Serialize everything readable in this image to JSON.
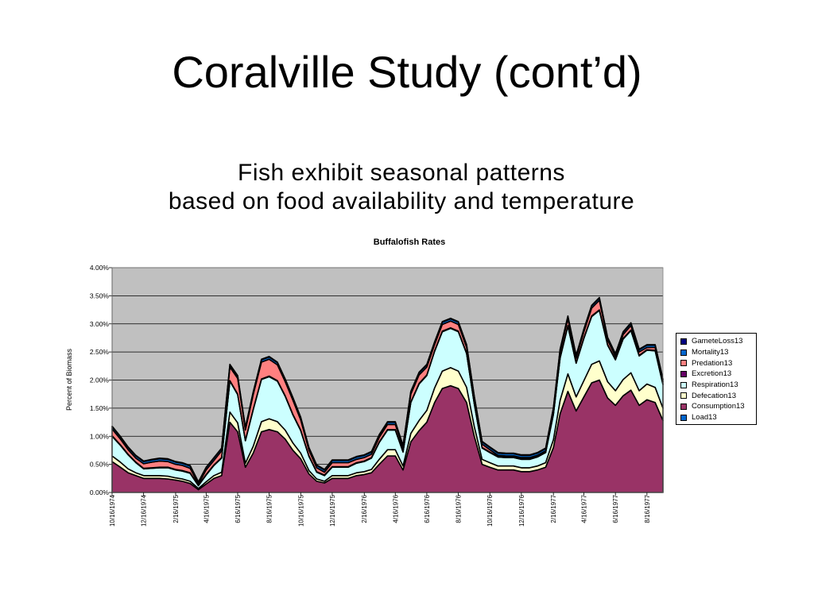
{
  "slide": {
    "title": "Coralville Study (cont’d)",
    "headline_line1": "Fish exhibit seasonal patterns",
    "headline_line2": "based  on food availability and temperature"
  },
  "chart_data": {
    "type": "area",
    "title": "Buffalofish Rates",
    "xlabel": "",
    "ylabel": "Percent of Biomass",
    "ylim": [
      0,
      0.04
    ],
    "y_ticks": [
      "0.00%",
      "0.50%",
      "1.00%",
      "1.50%",
      "2.00%",
      "2.50%",
      "3.00%",
      "3.50%",
      "4.00%"
    ],
    "x_ticks": [
      "10/16/1974",
      "12/16/1974",
      "2/16/1975",
      "4/16/1975",
      "6/16/1975",
      "8/16/1975",
      "10/16/1975",
      "12/16/1975",
      "2/16/1976",
      "4/16/1976",
      "6/16/1976",
      "8/16/1976",
      "10/16/1976",
      "12/16/1976",
      "2/16/1977",
      "4/16/1977",
      "6/16/1977",
      "8/16/1977"
    ],
    "x_tick_labels": [
      "10/16/1974",
      "12/16/1974",
      "2/16/1975",
      "4/16/1975",
      "6/16/1975",
      "8/16/1975",
      "10/16/1975",
      "12/16/1975",
      "2/16/1976",
      "4/16/1976",
      "6/16/1976",
      "8/16/1976",
      "10/16/1976",
      "12/16/1976",
      "2/16/1977",
      "4/16/1977",
      "6/16/1977",
      "8/16/1977"
    ],
    "stacked": true,
    "grid": true,
    "plot_background": "#C0C0C0",
    "legend_position": "right",
    "x": [
      "1974-10-16",
      "1974-11-01",
      "1974-11-16",
      "1974-12-01",
      "1974-12-16",
      "1975-01-01",
      "1975-01-16",
      "1975-02-01",
      "1975-02-16",
      "1975-03-01",
      "1975-03-16",
      "1975-04-01",
      "1975-04-16",
      "1975-05-01",
      "1975-05-16",
      "1975-06-01",
      "1975-06-16",
      "1975-07-01",
      "1975-07-16",
      "1975-08-01",
      "1975-08-16",
      "1975-09-01",
      "1975-09-16",
      "1975-10-01",
      "1975-10-16",
      "1975-11-01",
      "1975-11-16",
      "1975-12-01",
      "1975-12-16",
      "1976-01-01",
      "1976-01-16",
      "1976-02-01",
      "1976-02-16",
      "1976-03-01",
      "1976-03-16",
      "1976-04-01",
      "1976-04-16",
      "1976-05-01",
      "1976-05-16",
      "1976-06-01",
      "1976-06-16",
      "1976-07-01",
      "1976-07-16",
      "1976-08-01",
      "1976-08-16",
      "1976-09-01",
      "1976-09-16",
      "1976-10-01",
      "1976-10-16",
      "1976-11-01",
      "1976-11-16",
      "1976-12-01",
      "1976-12-16",
      "1977-01-01",
      "1977-01-16",
      "1977-02-01",
      "1977-02-16",
      "1977-03-01",
      "1977-03-16",
      "1977-04-01",
      "1977-04-16",
      "1977-05-01",
      "1977-05-16",
      "1977-06-01",
      "1977-06-16",
      "1977-07-01",
      "1977-07-16",
      "1977-08-01",
      "1977-08-16",
      "1977-09-01",
      "1977-09-16"
    ],
    "series": [
      {
        "name": "Consumption13",
        "color": "#993366",
        "values": [
          0.0055,
          0.0045,
          0.0035,
          0.003,
          0.0025,
          0.0025,
          0.0025,
          0.0024,
          0.0022,
          0.002,
          0.0016,
          0.0005,
          0.0015,
          0.0025,
          0.003,
          0.0125,
          0.0108,
          0.0045,
          0.007,
          0.0108,
          0.0112,
          0.0108,
          0.0095,
          0.0075,
          0.006,
          0.0033,
          0.002,
          0.0017,
          0.0025,
          0.0025,
          0.0025,
          0.003,
          0.0032,
          0.0035,
          0.005,
          0.0065,
          0.0065,
          0.004,
          0.009,
          0.011,
          0.0125,
          0.016,
          0.0185,
          0.019,
          0.0185,
          0.016,
          0.01,
          0.005,
          0.0045,
          0.004,
          0.004,
          0.004,
          0.0037,
          0.0037,
          0.004,
          0.0045,
          0.008,
          0.014,
          0.018,
          0.0145,
          0.017,
          0.0195,
          0.02,
          0.0168,
          0.0155,
          0.0172,
          0.0182,
          0.0155,
          0.0165,
          0.016,
          0.0128
        ]
      },
      {
        "name": "Defecation13",
        "color": "#FFFFCC",
        "values": [
          0.001,
          0.0009,
          0.0007,
          0.0005,
          0.0005,
          0.0005,
          0.0005,
          0.0005,
          0.0004,
          0.0004,
          0.0004,
          0.0002,
          0.0004,
          0.0005,
          0.0006,
          0.0018,
          0.0016,
          0.0007,
          0.0012,
          0.0018,
          0.0019,
          0.0018,
          0.0016,
          0.0013,
          0.001,
          0.0006,
          0.0004,
          0.0003,
          0.0005,
          0.0005,
          0.0005,
          0.0005,
          0.0005,
          0.0006,
          0.0009,
          0.0011,
          0.0011,
          0.0007,
          0.0015,
          0.0018,
          0.0021,
          0.0026,
          0.0031,
          0.0032,
          0.0031,
          0.0027,
          0.0017,
          0.0009,
          0.0008,
          0.0007,
          0.0007,
          0.0007,
          0.0007,
          0.0007,
          0.0007,
          0.0008,
          0.0014,
          0.0024,
          0.0031,
          0.0025,
          0.0029,
          0.0033,
          0.0034,
          0.0029,
          0.0026,
          0.0029,
          0.0031,
          0.0026,
          0.0028,
          0.0027,
          0.0022
        ]
      },
      {
        "name": "Respiration13",
        "color": "#CCFFFF",
        "values": [
          0.0035,
          0.003,
          0.0025,
          0.0018,
          0.0012,
          0.0013,
          0.0014,
          0.0015,
          0.0014,
          0.0014,
          0.0014,
          0.0005,
          0.0012,
          0.0018,
          0.0025,
          0.0055,
          0.005,
          0.004,
          0.0065,
          0.0075,
          0.0075,
          0.0072,
          0.006,
          0.005,
          0.004,
          0.0025,
          0.0012,
          0.001,
          0.0015,
          0.0015,
          0.0015,
          0.0017,
          0.0018,
          0.002,
          0.003,
          0.0035,
          0.0035,
          0.0025,
          0.0055,
          0.0065,
          0.0062,
          0.0065,
          0.007,
          0.007,
          0.007,
          0.006,
          0.004,
          0.002,
          0.0018,
          0.0016,
          0.0015,
          0.0015,
          0.0015,
          0.0015,
          0.0016,
          0.0018,
          0.0045,
          0.0075,
          0.0085,
          0.006,
          0.0075,
          0.0085,
          0.009,
          0.0065,
          0.0055,
          0.0072,
          0.0075,
          0.0062,
          0.006,
          0.0065,
          0.0042
        ]
      },
      {
        "name": "Excretion13",
        "color": "#660066",
        "values": [
          0.0001,
          0.0001,
          0.0001,
          0.0001,
          0.0001,
          0.0001,
          0.0001,
          0.0001,
          0.0001,
          0.0001,
          0.0001,
          0.0001,
          0.0001,
          0.0001,
          0.0001,
          0.0001,
          0.0001,
          0.0001,
          0.0001,
          0.0001,
          0.0001,
          0.0001,
          0.0001,
          0.0001,
          0.0001,
          0.0001,
          0.0001,
          0.0001,
          0.0001,
          0.0001,
          0.0001,
          0.0001,
          0.0001,
          0.0001,
          0.0001,
          0.0001,
          0.0001,
          0.0001,
          0.0001,
          0.0001,
          0.0001,
          0.0001,
          0.0001,
          0.0001,
          0.0001,
          0.0001,
          0.0001,
          0.0001,
          0.0001,
          0.0001,
          0.0001,
          0.0001,
          0.0001,
          0.0001,
          0.0001,
          0.0001,
          0.0001,
          0.0001,
          0.0001,
          0.0001,
          0.0001,
          0.0001,
          0.0001,
          0.0001,
          0.0001,
          0.0001,
          0.0001,
          0.0001,
          0.0001,
          0.0001,
          0.0001
        ]
      },
      {
        "name": "Predation13",
        "color": "#FF8080",
        "values": [
          0.0012,
          0.001,
          0.0008,
          0.0007,
          0.0008,
          0.001,
          0.0011,
          0.001,
          0.0009,
          0.0009,
          0.0008,
          0.0002,
          0.0008,
          0.0008,
          0.0012,
          0.0024,
          0.0028,
          0.0018,
          0.0026,
          0.003,
          0.003,
          0.0028,
          0.0025,
          0.0025,
          0.0018,
          0.001,
          0.0007,
          0.0005,
          0.0007,
          0.0007,
          0.0007,
          0.0006,
          0.0006,
          0.0006,
          0.0008,
          0.0009,
          0.0009,
          0.0006,
          0.0014,
          0.0015,
          0.0014,
          0.0011,
          0.0012,
          0.0012,
          0.0012,
          0.001,
          0.0008,
          0.0006,
          0.0004,
          0.0002,
          0.0002,
          0.0002,
          0.0002,
          0.0002,
          0.0002,
          0.0002,
          0.0006,
          0.001,
          0.0012,
          0.0008,
          0.0011,
          0.0014,
          0.0017,
          0.0008,
          0.0005,
          0.0007,
          0.0008,
          0.0006,
          0.0004,
          0.0005,
          0.0004
        ]
      },
      {
        "name": "Mortality13",
        "color": "#0066CC",
        "values": [
          0.0004,
          0.0004,
          0.0004,
          0.0004,
          0.0004,
          0.0004,
          0.0004,
          0.0004,
          0.0004,
          0.0004,
          0.0004,
          0.0003,
          0.0004,
          0.0004,
          0.0004,
          0.0004,
          0.0004,
          0.0004,
          0.0004,
          0.0004,
          0.0004,
          0.0004,
          0.0004,
          0.0004,
          0.0004,
          0.0004,
          0.0004,
          0.0004,
          0.0004,
          0.0004,
          0.0004,
          0.0004,
          0.0004,
          0.0004,
          0.0004,
          0.0004,
          0.0004,
          0.0004,
          0.0004,
          0.0004,
          0.0004,
          0.0004,
          0.0004,
          0.0004,
          0.0004,
          0.0004,
          0.0004,
          0.0004,
          0.0004,
          0.0004,
          0.0004,
          0.0004,
          0.0004,
          0.0004,
          0.0004,
          0.0004,
          0.0004,
          0.0004,
          0.0004,
          0.0004,
          0.0004,
          0.0004,
          0.0004,
          0.0004,
          0.0004,
          0.0004,
          0.0004,
          0.0004,
          0.0004,
          0.0004,
          0.0004
        ]
      },
      {
        "name": "GameteLoss13",
        "color": "#000080",
        "values": [
          0.0001,
          0.0001,
          0.0001,
          0.0001,
          0.0001,
          0.0001,
          0.0001,
          0.0001,
          0.0001,
          0.0001,
          0.0001,
          0.0001,
          0.0001,
          0.0001,
          0.0001,
          0.0001,
          0.0001,
          0.0001,
          0.0001,
          0.0001,
          0.0001,
          0.0001,
          0.0001,
          0.0001,
          0.0001,
          0.0001,
          0.0001,
          0.0001,
          0.0001,
          0.0001,
          0.0001,
          0.0001,
          0.0001,
          0.0001,
          0.0001,
          0.0001,
          0.0001,
          0.0001,
          0.0001,
          0.0001,
          0.0001,
          0.0001,
          0.0001,
          0.0001,
          0.0001,
          0.0001,
          0.0001,
          0.0001,
          0.0001,
          0.0001,
          0.0001,
          0.0001,
          0.0001,
          0.0001,
          0.0001,
          0.0001,
          0.0001,
          0.0001,
          0.0001,
          0.0001,
          0.0001,
          0.0001,
          0.0001,
          0.0001,
          0.0001,
          0.0001,
          0.0001,
          0.0001,
          0.0001,
          0.0001,
          0.0001
        ]
      }
    ],
    "legend": [
      {
        "label": "GameteLoss13",
        "color": "#000080"
      },
      {
        "label": "Mortality13",
        "color": "#0066CC"
      },
      {
        "label": "Predation13",
        "color": "#FF8080"
      },
      {
        "label": "Excretion13",
        "color": "#660066"
      },
      {
        "label": "Respiration13",
        "color": "#CCFFFF"
      },
      {
        "label": "Defecation13",
        "color": "#FFFFCC"
      },
      {
        "label": "Consumption13",
        "color": "#993366"
      },
      {
        "label": "Load13",
        "color": "#0066CC"
      }
    ]
  }
}
